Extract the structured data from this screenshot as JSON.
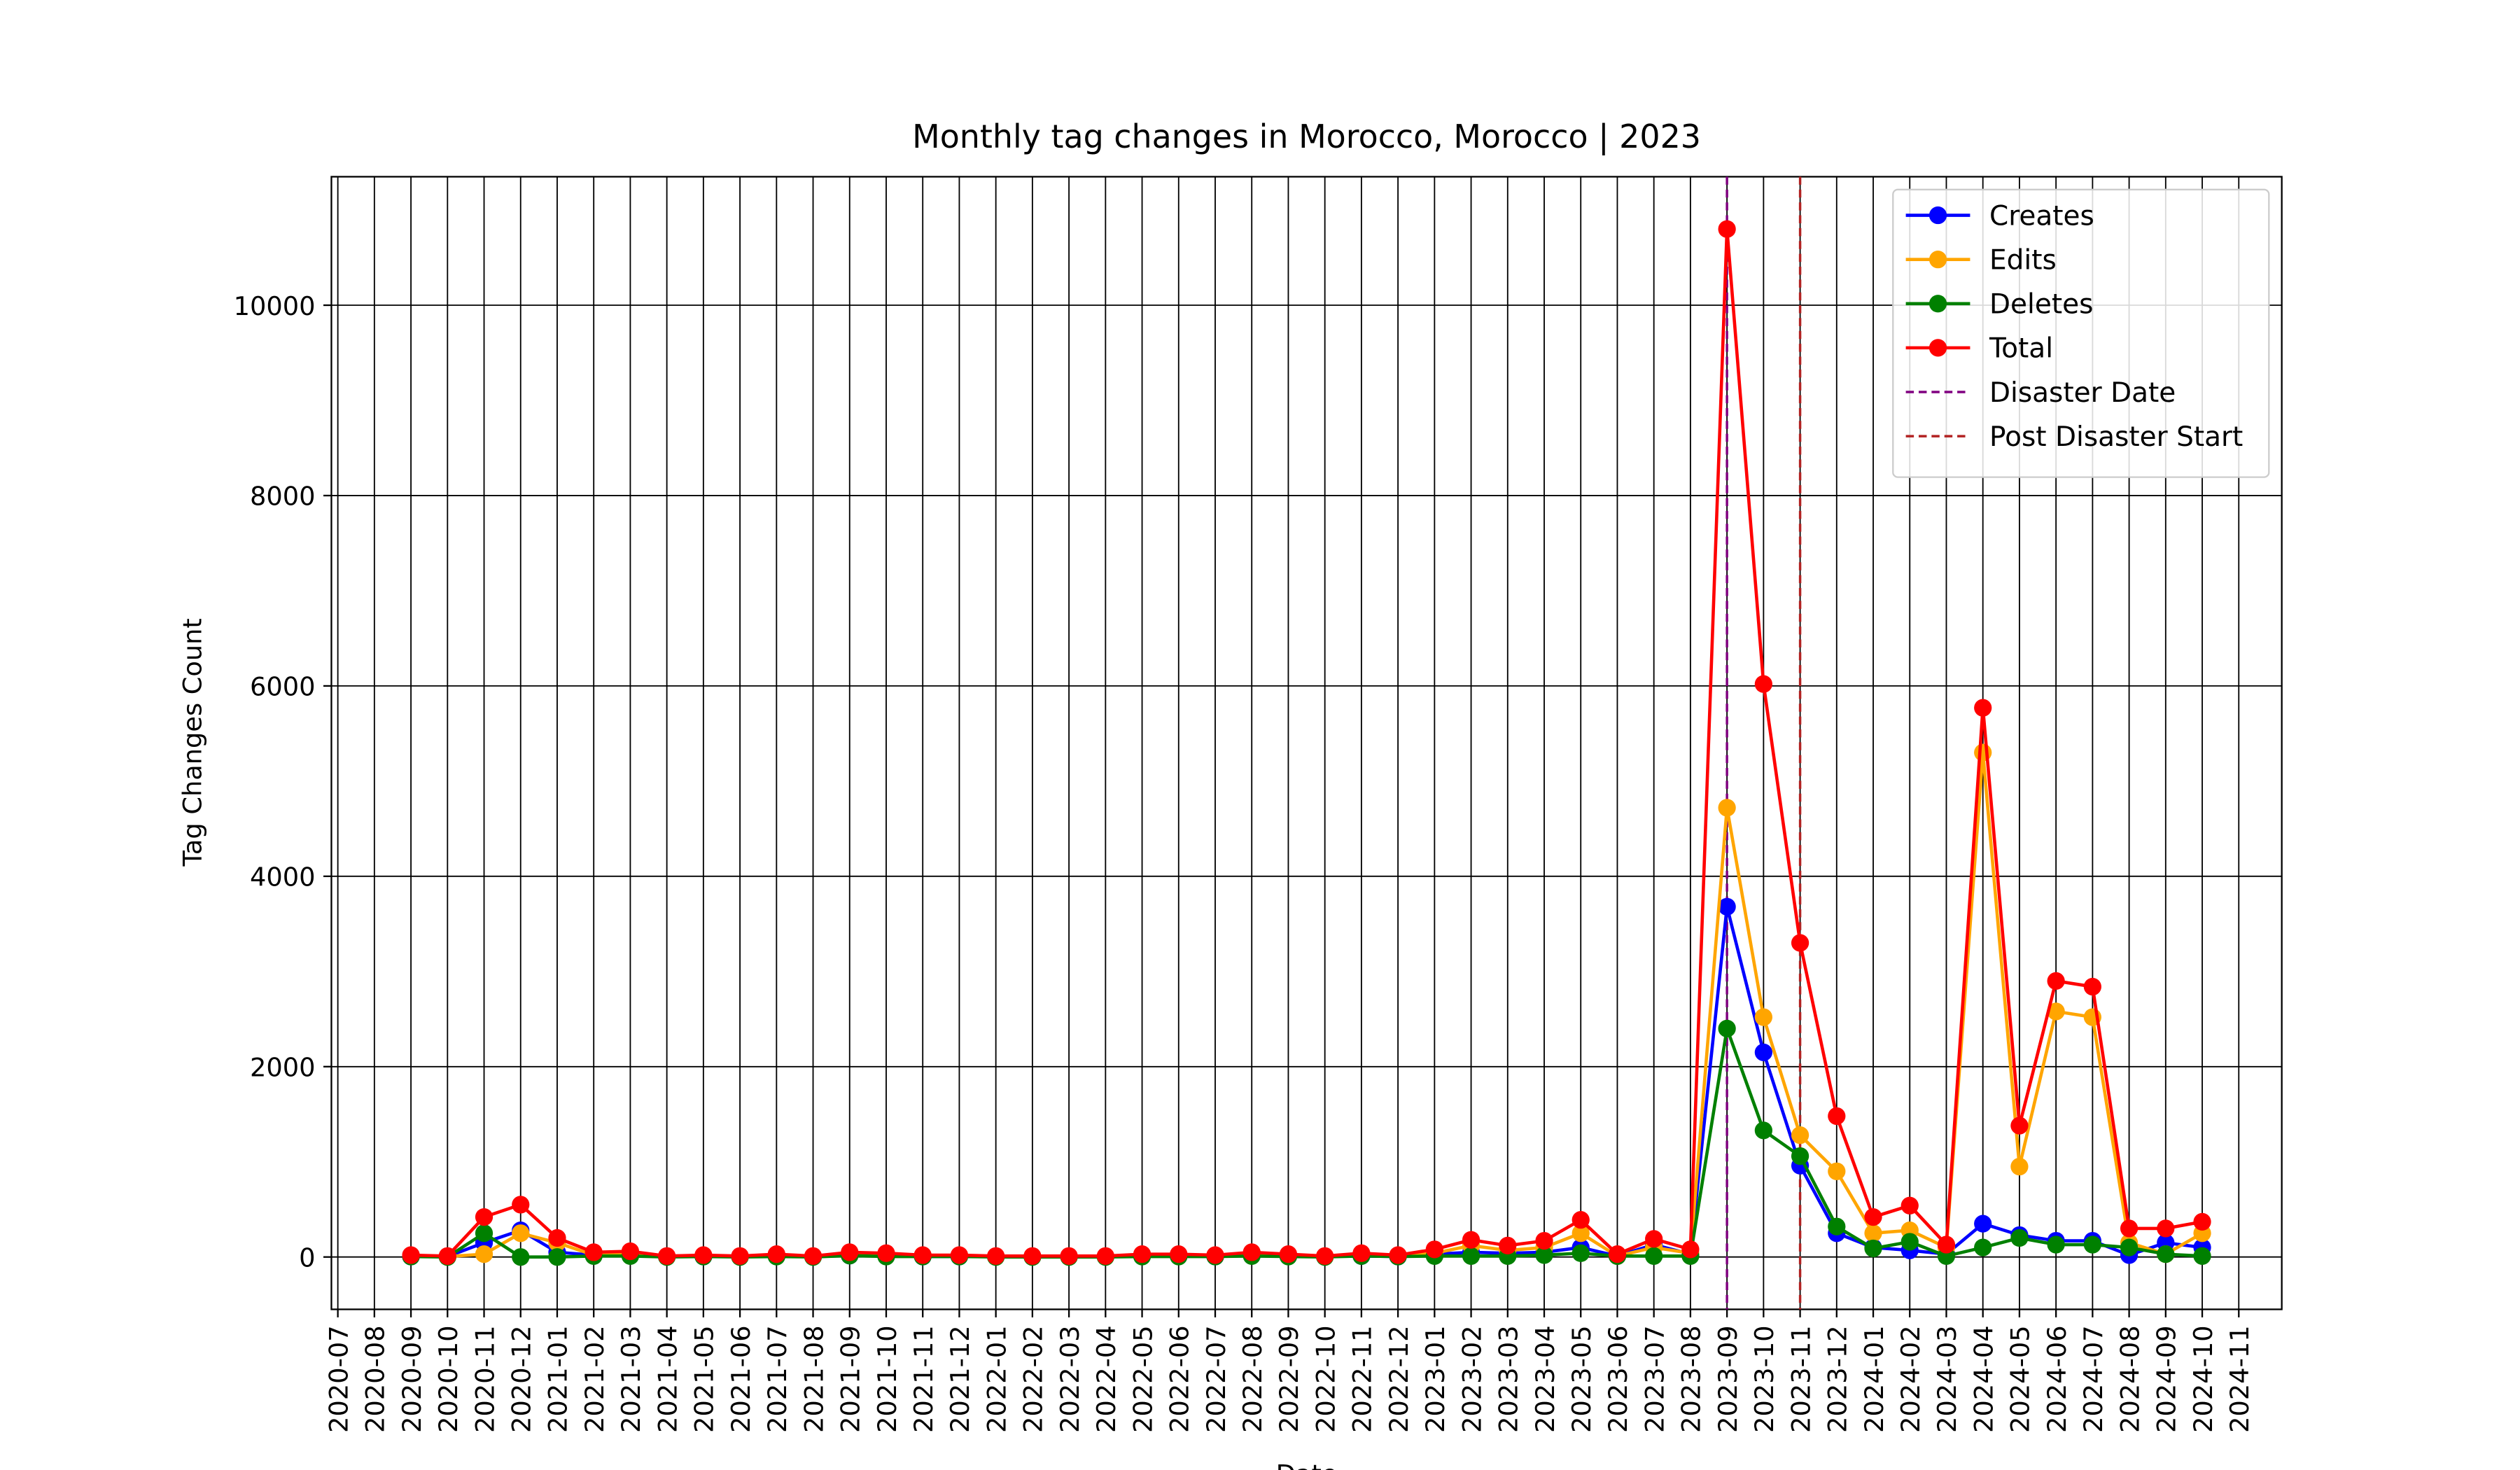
{
  "chart_data": {
    "type": "line",
    "title": "Monthly tag changes in Morocco, Morocco | 2023",
    "xlabel": "Date",
    "ylabel": "Tag Changes Count",
    "x": [
      "2020-09",
      "2020-10",
      "2020-11",
      "2020-12",
      "2021-01",
      "2021-02",
      "2021-03",
      "2021-04",
      "2021-05",
      "2021-06",
      "2021-07",
      "2021-08",
      "2021-09",
      "2021-10",
      "2021-11",
      "2021-12",
      "2022-01",
      "2022-02",
      "2022-03",
      "2022-04",
      "2022-05",
      "2022-06",
      "2022-07",
      "2022-08",
      "2022-09",
      "2022-10",
      "2022-11",
      "2022-12",
      "2023-01",
      "2023-02",
      "2023-03",
      "2023-04",
      "2023-05",
      "2023-06",
      "2023-07",
      "2023-08",
      "2023-09",
      "2023-10",
      "2023-11",
      "2023-12",
      "2024-01",
      "2024-02",
      "2024-03",
      "2024-04",
      "2024-05",
      "2024-06",
      "2024-07",
      "2024-08",
      "2024-09",
      "2024-10"
    ],
    "series": [
      {
        "name": "Creates",
        "color": "#0000ff",
        "values": [
          5,
          5,
          150,
          280,
          50,
          20,
          20,
          5,
          5,
          5,
          10,
          5,
          15,
          15,
          5,
          5,
          5,
          5,
          5,
          5,
          10,
          10,
          5,
          15,
          10,
          5,
          10,
          5,
          30,
          50,
          40,
          50,
          100,
          10,
          130,
          30,
          3680,
          2150,
          960,
          250,
          100,
          70,
          30,
          350,
          230,
          170,
          170,
          20,
          150,
          100
        ]
      },
      {
        "name": "Edits",
        "color": "#ffa500",
        "values": [
          10,
          5,
          30,
          250,
          150,
          20,
          30,
          5,
          10,
          5,
          15,
          5,
          20,
          20,
          10,
          10,
          5,
          5,
          5,
          5,
          15,
          15,
          10,
          25,
          15,
          5,
          20,
          10,
          40,
          120,
          70,
          100,
          250,
          10,
          100,
          40,
          4720,
          2520,
          1280,
          900,
          250,
          280,
          100,
          5300,
          950,
          2580,
          2520,
          150,
          30,
          250
        ]
      },
      {
        "name": "Deletes",
        "color": "#008000",
        "values": [
          5,
          0,
          250,
          0,
          0,
          10,
          10,
          0,
          5,
          0,
          5,
          0,
          15,
          5,
          5,
          5,
          0,
          0,
          0,
          0,
          5,
          5,
          5,
          10,
          5,
          0,
          10,
          5,
          10,
          10,
          10,
          20,
          40,
          10,
          10,
          10,
          2400,
          1330,
          1060,
          320,
          90,
          160,
          10,
          100,
          200,
          130,
          130,
          100,
          30,
          10
        ]
      },
      {
        "name": "Total",
        "color": "#ff0000",
        "values": [
          20,
          10,
          420,
          550,
          200,
          50,
          60,
          10,
          20,
          10,
          30,
          10,
          50,
          40,
          20,
          20,
          10,
          10,
          10,
          10,
          30,
          30,
          20,
          50,
          30,
          10,
          40,
          20,
          80,
          180,
          120,
          170,
          390,
          30,
          190,
          80,
          10800,
          6020,
          3300,
          1480,
          420,
          540,
          130,
          5770,
          1380,
          2900,
          2840,
          300,
          300,
          370
        ]
      }
    ],
    "vlines": [
      {
        "name": "Disaster Date",
        "x": "2023-09",
        "color": "#800080"
      },
      {
        "name": "Post Disaster Start",
        "x": "2023-11",
        "color": "#b22222"
      }
    ],
    "xlim": [
      "2020-07",
      "2024-12"
    ],
    "xticks": [
      "2020-07",
      "2020-08",
      "2020-09",
      "2020-10",
      "2020-11",
      "2020-12",
      "2021-01",
      "2021-02",
      "2021-03",
      "2021-04",
      "2021-05",
      "2021-06",
      "2021-07",
      "2021-08",
      "2021-09",
      "2021-10",
      "2021-11",
      "2021-12",
      "2022-01",
      "2022-02",
      "2022-03",
      "2022-04",
      "2022-05",
      "2022-06",
      "2022-07",
      "2022-08",
      "2022-09",
      "2022-10",
      "2022-11",
      "2022-12",
      "2023-01",
      "2023-02",
      "2023-03",
      "2023-04",
      "2023-05",
      "2023-06",
      "2023-07",
      "2023-08",
      "2023-09",
      "2023-10",
      "2023-11",
      "2023-12",
      "2024-01",
      "2024-02",
      "2024-03",
      "2024-04",
      "2024-05",
      "2024-06",
      "2024-07",
      "2024-08",
      "2024-09",
      "2024-10",
      "2024-11"
    ],
    "ylim": [
      -550,
      11350
    ],
    "yticks": [
      0,
      2000,
      4000,
      6000,
      8000,
      10000
    ],
    "grid": true,
    "legend": "upper right"
  }
}
